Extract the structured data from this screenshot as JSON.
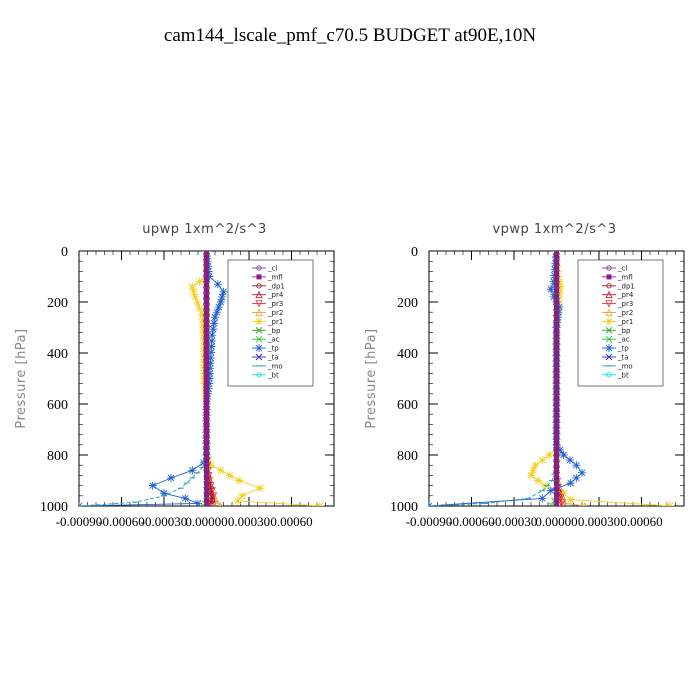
{
  "figure": {
    "title": "cam144_lscale_pmf_c70.5  BUDGET at90E,10N"
  },
  "legend_items": [
    {
      "label": "_cl",
      "color": "#7b3f9e"
    },
    {
      "label": "_mfl",
      "color": "#8b1a8b"
    },
    {
      "label": "_dp1",
      "color": "#a0102a"
    },
    {
      "label": "_pr4",
      "color": "#c8102e"
    },
    {
      "label": "_pr3",
      "color": "#e0303a"
    },
    {
      "label": "_pr2",
      "color": "#f0a030"
    },
    {
      "label": "_pr1",
      "color": "#f2d020"
    },
    {
      "label": "_bp",
      "color": "#20a020"
    },
    {
      "label": "_ac",
      "color": "#30c030"
    },
    {
      "label": "_tp",
      "color": "#2060d0"
    },
    {
      "label": "_ta",
      "color": "#3030c0"
    },
    {
      "label": "_mo",
      "color": "#20a0c0"
    },
    {
      "label": "_bt",
      "color": "#00e0e0"
    }
  ],
  "chart_data": [
    {
      "type": "line",
      "title": "upwp   1xm^2/s^3",
      "xlabel": "",
      "ylabel": "Pressure  [hPa]",
      "xlim": [
        -0.0009,
        0.0009
      ],
      "ylim": [
        1000,
        0
      ],
      "xticks": [
        "-0.00090",
        "-0.00060",
        "-0.00030",
        "0.00000",
        "0.00030",
        "0.00060"
      ],
      "xtick_values": [
        -0.0009,
        -0.0006,
        -0.0003,
        0.0,
        0.0003,
        0.0006
      ],
      "yticks": [
        "0",
        "200",
        "400",
        "600",
        "800",
        "1000"
      ],
      "ytick_values": [
        0,
        200,
        400,
        600,
        800,
        1000
      ],
      "legend_position": "top-right",
      "series": [
        {
          "name": "_pr1",
          "color": "#f2d020",
          "marker": "star",
          "points": [
            [
              0.0,
              0
            ],
            [
              0.0,
              100
            ],
            [
              -5e-05,
              120
            ],
            [
              -0.0001,
              140
            ],
            [
              -8e-05,
              180
            ],
            [
              -3e-05,
              250
            ],
            [
              -2e-05,
              350
            ],
            [
              -2e-05,
              480
            ],
            [
              -1e-05,
              540
            ],
            [
              0.0,
              600
            ],
            [
              0.0,
              800
            ],
            [
              3e-05,
              840
            ],
            [
              0.0001,
              860
            ],
            [
              0.00023,
              900
            ],
            [
              0.00038,
              930
            ],
            [
              0.00025,
              960
            ],
            [
              0.00022,
              980
            ],
            [
              0.0008,
              1000
            ]
          ]
        },
        {
          "name": "_pr2",
          "color": "#f0a030",
          "marker": "tri-up",
          "points": [
            [
              0.0,
              0
            ],
            [
              0.0,
              800
            ],
            [
              1e-05,
              900
            ],
            [
              4e-05,
              950
            ],
            [
              8e-05,
              990
            ],
            [
              0.0001,
              1000
            ]
          ]
        },
        {
          "name": "_pr3",
          "color": "#e0303a",
          "marker": "tri-down",
          "points": [
            [
              0.0,
              0
            ],
            [
              0.0,
              800
            ],
            [
              2e-05,
              900
            ],
            [
              5e-05,
              960
            ],
            [
              3e-05,
              1000
            ]
          ]
        },
        {
          "name": "_pr4",
          "color": "#c8102e",
          "marker": "tri-up",
          "points": [
            [
              0.0,
              0
            ],
            [
              0.0,
              850
            ],
            [
              3e-05,
              920
            ],
            [
              4e-05,
              970
            ],
            [
              2e-05,
              1000
            ]
          ]
        },
        {
          "name": "_dp1",
          "color": "#a0102a",
          "marker": "circle",
          "points": [
            [
              0.0,
              0
            ],
            [
              0.0,
              880
            ],
            [
              2e-05,
              940
            ],
            [
              4e-05,
              980
            ],
            [
              0.0,
              1000
            ]
          ]
        },
        {
          "name": "_tp",
          "color": "#2060d0",
          "marker": "star",
          "points": [
            [
              0.0,
              0
            ],
            [
              2e-05,
              100
            ],
            [
              8e-05,
              130
            ],
            [
              0.00012,
              160
            ],
            [
              0.0001,
              200
            ],
            [
              6e-05,
              260
            ],
            [
              4e-05,
              330
            ],
            [
              3e-05,
              420
            ],
            [
              2e-05,
              520
            ],
            [
              0.0,
              600
            ],
            [
              0.0,
              800
            ],
            [
              -2e-05,
              830
            ],
            [
              -0.0001,
              860
            ],
            [
              -0.00025,
              890
            ],
            [
              -0.00038,
              920
            ],
            [
              -0.0003,
              950
            ],
            [
              -0.00015,
              970
            ],
            [
              -6e-05,
              990
            ],
            [
              -0.0009,
              1000
            ]
          ]
        },
        {
          "name": "_mo",
          "color": "#20a0c0",
          "marker": "dash",
          "points": [
            [
              0.0,
              0
            ],
            [
              0.0,
              800
            ],
            [
              -3e-05,
              850
            ],
            [
              -0.0001,
              890
            ],
            [
              -0.00018,
              930
            ],
            [
              -0.0003,
              960
            ],
            [
              -0.0005,
              985
            ],
            [
              -0.0009,
              1000
            ]
          ]
        },
        {
          "name": "_ac",
          "color": "#30c030",
          "marker": "x",
          "points": [
            [
              0.0,
              0
            ],
            [
              0.0,
              960
            ],
            [
              -1e-05,
              990
            ],
            [
              -2e-05,
              1000
            ]
          ]
        },
        {
          "name": "_mfl",
          "color": "#8b1a8b",
          "marker": "square",
          "points": [
            [
              0.0,
              0
            ],
            [
              0.0,
              1000
            ]
          ]
        }
      ]
    },
    {
      "type": "line",
      "title": "vpwp   1xm^2/s^3",
      "xlabel": "",
      "ylabel": "Pressure  [hPa]",
      "xlim": [
        -0.0009,
        0.0009
      ],
      "ylim": [
        1000,
        0
      ],
      "xticks": [
        "-0.00090",
        "-0.00060",
        "-0.00030",
        "0.00000",
        "0.00030",
        "0.00060"
      ],
      "xtick_values": [
        -0.0009,
        -0.0006,
        -0.0003,
        0.0,
        0.0003,
        0.0006
      ],
      "yticks": [
        "0",
        "200",
        "400",
        "600",
        "800",
        "1000"
      ],
      "ytick_values": [
        0,
        200,
        400,
        600,
        800,
        1000
      ],
      "legend_position": "top-right",
      "series": [
        {
          "name": "_pr1",
          "color": "#f2d020",
          "marker": "star",
          "points": [
            [
              0.0,
              0
            ],
            [
              1e-05,
              100
            ],
            [
              3e-05,
              140
            ],
            [
              2e-05,
              180
            ],
            [
              1e-05,
              250
            ],
            [
              0.0,
              350
            ],
            [
              0.0,
              770
            ],
            [
              -5e-05,
              800
            ],
            [
              -0.00015,
              840
            ],
            [
              -0.00018,
              880
            ],
            [
              -8e-05,
              920
            ],
            [
              5e-05,
              950
            ],
            [
              0.0001,
              975
            ],
            [
              0.0008,
              1000
            ]
          ]
        },
        {
          "name": "_pr2",
          "color": "#f0a030",
          "marker": "tri-up",
          "points": [
            [
              0.0,
              0
            ],
            [
              0.0,
              880
            ],
            [
              3e-05,
              950
            ],
            [
              6e-05,
              990
            ],
            [
              0.0002,
              1000
            ]
          ]
        },
        {
          "name": "_pr3",
          "color": "#e0303a",
          "marker": "tri-down",
          "points": [
            [
              0.0,
              0
            ],
            [
              0.0,
              880
            ],
            [
              2e-05,
              950
            ],
            [
              4e-05,
              985
            ],
            [
              2e-05,
              1000
            ]
          ]
        },
        {
          "name": "_dp1",
          "color": "#a0102a",
          "marker": "circle",
          "points": [
            [
              0.0,
              0
            ],
            [
              0.0,
              900
            ],
            [
              2e-05,
              960
            ],
            [
              0.0,
              1000
            ]
          ]
        },
        {
          "name": "_tp",
          "color": "#2060d0",
          "marker": "star",
          "points": [
            [
              0.0,
              0
            ],
            [
              -2e-05,
              120
            ],
            [
              -4e-05,
              150
            ],
            [
              -2e-05,
              180
            ],
            [
              2e-05,
              220
            ],
            [
              0.0,
              300
            ],
            [
              0.0,
              760
            ],
            [
              5e-05,
              800
            ],
            [
              0.00014,
              840
            ],
            [
              0.00018,
              870
            ],
            [
              0.0001,
              910
            ],
            [
              -4e-05,
              940
            ],
            [
              -0.0001,
              970
            ],
            [
              -0.0009,
              1000
            ]
          ]
        },
        {
          "name": "_mo",
          "color": "#20a0c0",
          "marker": "dash",
          "points": [
            [
              0.0,
              0
            ],
            [
              0.0,
              850
            ],
            [
              -3e-05,
              900
            ],
            [
              -0.0001,
              940
            ],
            [
              -0.0002,
              970
            ],
            [
              -0.0005,
              990
            ],
            [
              -0.0009,
              1000
            ]
          ]
        },
        {
          "name": "_ac",
          "color": "#30c030",
          "marker": "x",
          "points": [
            [
              0.0,
              0
            ],
            [
              0.0,
              960
            ],
            [
              -3e-05,
              1000
            ]
          ]
        },
        {
          "name": "_mfl",
          "color": "#8b1a8b",
          "marker": "square",
          "points": [
            [
              0.0,
              0
            ],
            [
              0.0,
              1000
            ]
          ]
        }
      ]
    }
  ]
}
